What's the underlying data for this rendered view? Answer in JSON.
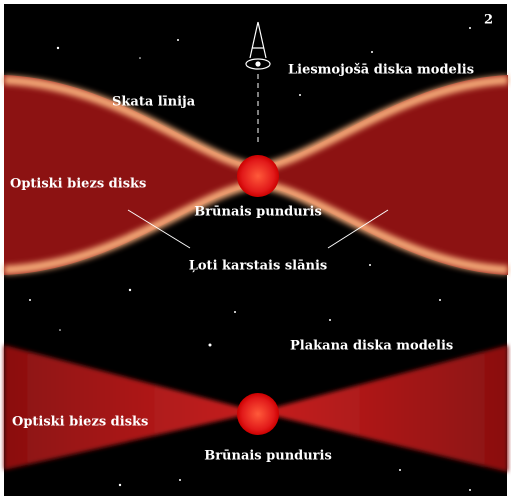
{
  "panel_number": "2",
  "top": {
    "title": "Liesmojošā diska modelis",
    "line_of_sight": "Skata līnija",
    "disk": "Optiski biezs disks",
    "dwarf": "Brūnais punduris",
    "hot_layer": "Ļoti karstais slānis"
  },
  "bottom": {
    "title": "Plakana diska modelis",
    "disk": "Optiski biezs disks",
    "dwarf": "Brūnais punduris"
  }
}
